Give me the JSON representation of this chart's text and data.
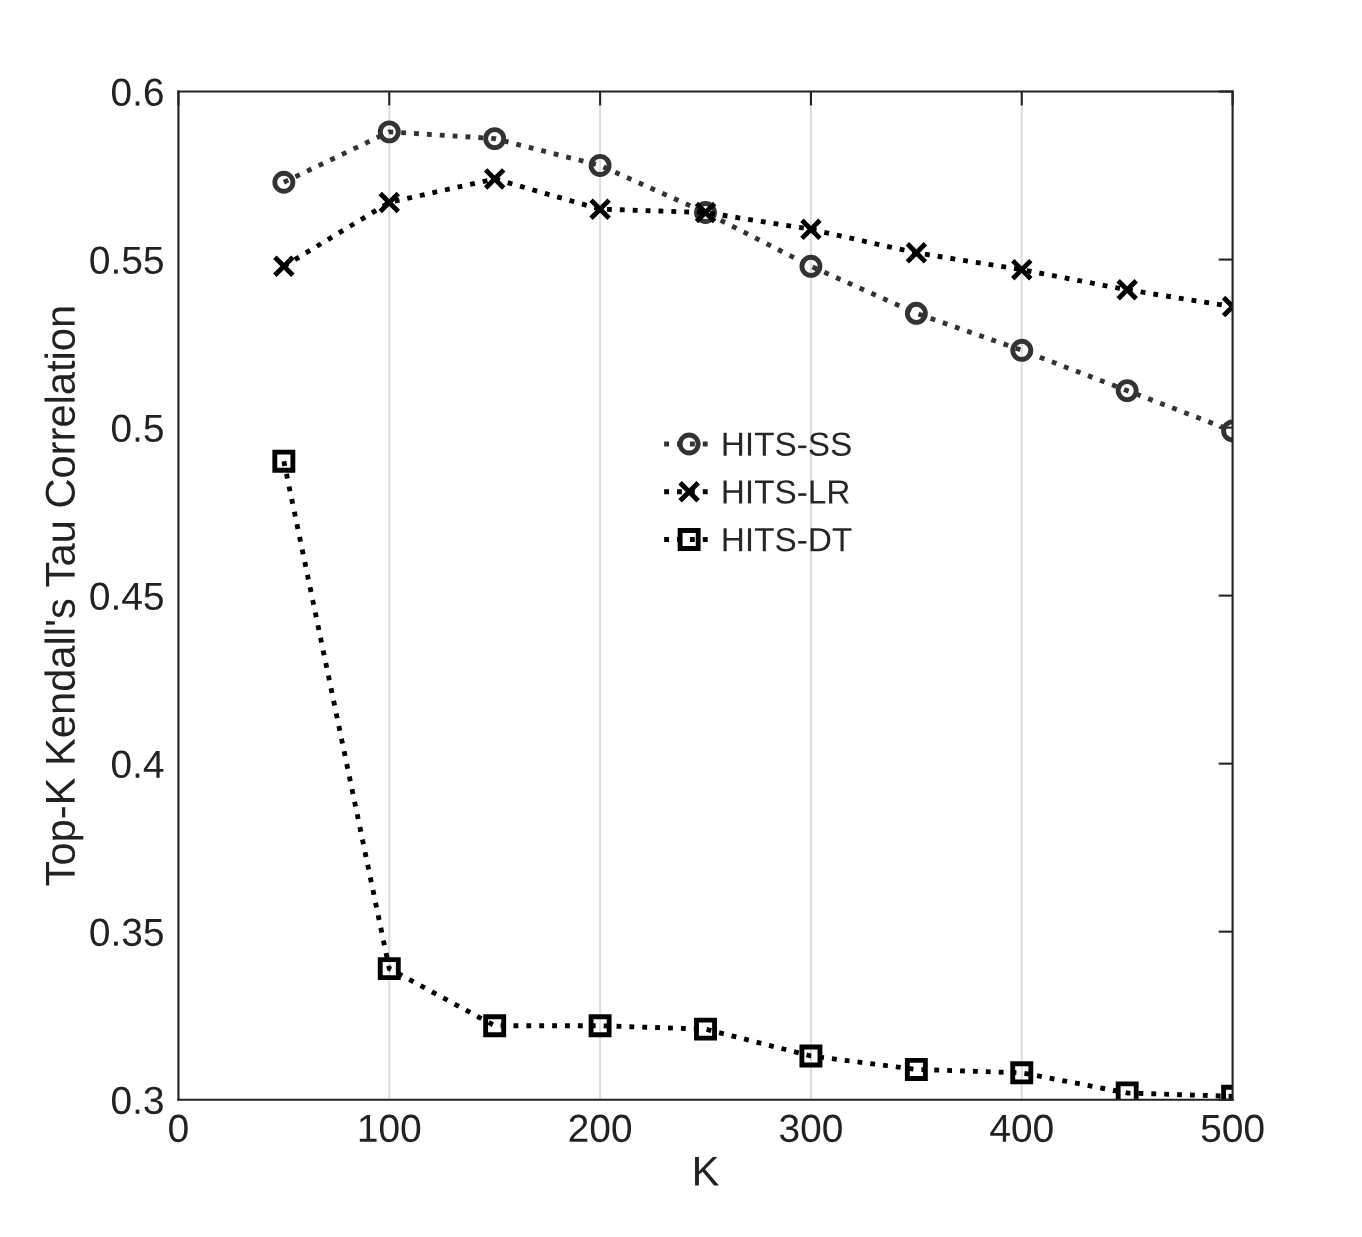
{
  "chart_data": {
    "type": "line",
    "xlabel": "K",
    "ylabel": "Top-K Kendall's Tau Correlation",
    "x": [
      50,
      100,
      150,
      200,
      250,
      300,
      350,
      400,
      450,
      500
    ],
    "series": [
      {
        "name": "HITS-SS",
        "color": "#333333",
        "marker": "circle",
        "values": [
          0.573,
          0.588,
          0.586,
          0.578,
          0.564,
          0.548,
          0.534,
          0.523,
          0.511,
          0.499
        ]
      },
      {
        "name": "HITS-LR",
        "color": "#000000",
        "marker": "cross",
        "values": [
          0.548,
          0.567,
          0.574,
          0.565,
          0.564,
          0.559,
          0.552,
          0.547,
          0.541,
          0.536
        ]
      },
      {
        "name": "HITS-DT",
        "color": "#000000",
        "marker": "square",
        "values": [
          0.49,
          0.339,
          0.322,
          0.322,
          0.321,
          0.313,
          0.309,
          0.308,
          0.302,
          0.301
        ]
      }
    ],
    "xlim": [
      0,
      500
    ],
    "xticks": [
      0,
      100,
      200,
      300,
      400,
      500
    ],
    "ylim": [
      0.3,
      0.6
    ],
    "yticks": [
      0.3,
      0.35,
      0.4,
      0.45,
      0.5,
      0.55,
      0.6
    ],
    "grid": "x",
    "legend": "center",
    "line_style": "dotted"
  }
}
